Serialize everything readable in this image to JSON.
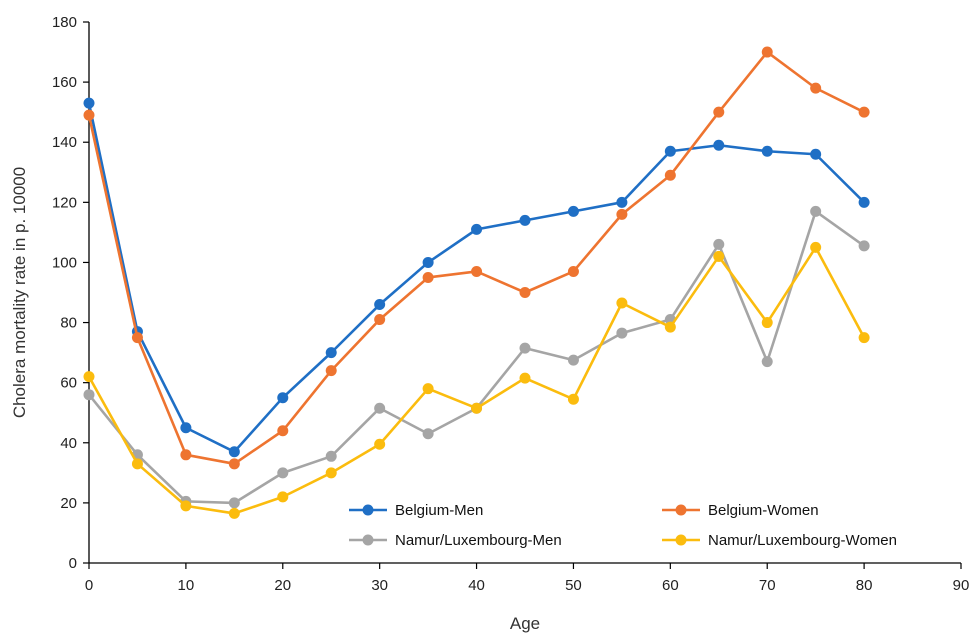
{
  "chart_data": {
    "type": "line",
    "title": "",
    "xlabel": "Age",
    "ylabel": "Cholera mortality rate in p. 10000",
    "xlim": [
      0,
      90
    ],
    "ylim": [
      0,
      180
    ],
    "x_ticks": [
      0,
      10,
      20,
      30,
      40,
      50,
      60,
      70,
      80,
      90
    ],
    "y_ticks": [
      0,
      20,
      40,
      60,
      80,
      100,
      120,
      140,
      160,
      180
    ],
    "grid": false,
    "legend_position": "inside-bottom-center",
    "x": [
      0,
      5,
      10,
      15,
      20,
      25,
      30,
      35,
      40,
      45,
      50,
      55,
      60,
      65,
      70,
      75,
      80
    ],
    "series": [
      {
        "name": "Belgium-Men",
        "color": "#1f6fc5",
        "values": [
          153,
          77,
          45,
          37,
          55,
          70,
          86,
          100,
          111,
          114,
          117,
          120,
          137,
          139,
          137,
          136,
          120
        ]
      },
      {
        "name": "Belgium-Women",
        "color": "#ee7430",
        "values": [
          149,
          75,
          36,
          33,
          44,
          64,
          81,
          95,
          97,
          90,
          97,
          116,
          129,
          150,
          170,
          158,
          150
        ]
      },
      {
        "name": "Namur/Luxembourg-Men",
        "color": "#a5a5a5",
        "values": [
          56,
          36,
          20.5,
          20,
          30,
          35.5,
          51.5,
          43,
          51.5,
          71.5,
          67.5,
          76.5,
          81,
          106,
          67,
          117,
          105.5
        ]
      },
      {
        "name": "Namur/Luxembourg-Women",
        "color": "#fbbc0e",
        "values": [
          62,
          33,
          19,
          16.5,
          22,
          30,
          39.5,
          58,
          51.5,
          61.5,
          54.5,
          86.5,
          78.5,
          102,
          80,
          105,
          75
        ]
      }
    ]
  }
}
